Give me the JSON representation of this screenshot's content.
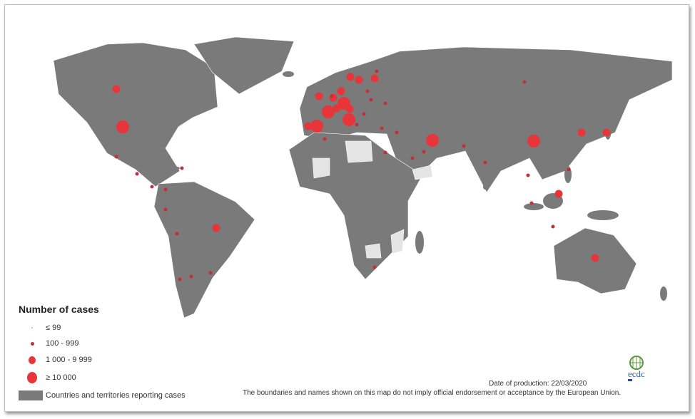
{
  "legend": {
    "title": "Number of cases",
    "classes": [
      {
        "label": "≤  99"
      },
      {
        "label": "100 - 999"
      },
      {
        "label": "1 000 - 9 999"
      },
      {
        "label": "≥ 10 000"
      }
    ],
    "reporting_label": "Countries and territories reporting cases"
  },
  "footer": {
    "date": "Date of production: 22/03/2020",
    "disclaimer": "The boundaries and names shown on this map do not imply official endorsement or acceptance by the European Union."
  },
  "logo": {
    "text": "ecdc"
  },
  "colors": {
    "reporting": "#7a7a7a",
    "not_reporting": "#e4e4e4",
    "marker": "#e8353a",
    "border": "#ffffff"
  }
}
